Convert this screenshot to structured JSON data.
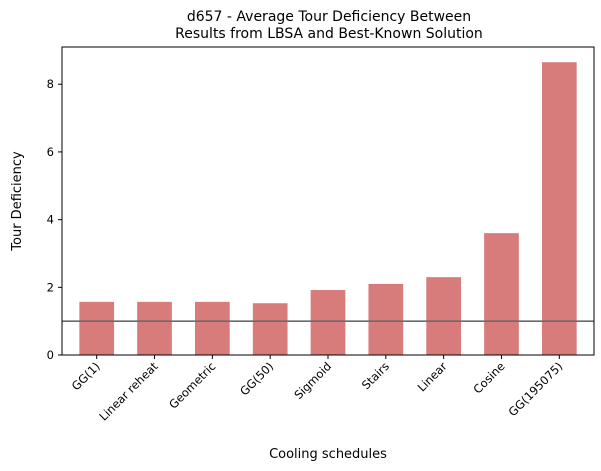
{
  "chart_data": {
    "type": "bar",
    "title_lines": [
      "d657 - Average Tour Deficiency Between",
      "Results from LBSA and Best-Known Solution"
    ],
    "xlabel": "Cooling schedules",
    "ylabel": "Tour Deficiency",
    "categories": [
      "GG(1)",
      "Linear reheat",
      "Geometric",
      "GG(50)",
      "Sigmoid",
      "Stairs",
      "Linear",
      "Cosine",
      "GG(195075)"
    ],
    "values": [
      1.57,
      1.57,
      1.57,
      1.53,
      1.92,
      2.1,
      2.3,
      3.6,
      8.65
    ],
    "ylim": [
      0,
      9.1
    ],
    "yticks": [
      0,
      2,
      4,
      6,
      8
    ],
    "reference_line": 1.0,
    "bar_color": "#d77b7b",
    "reference_line_color": "#6b6b6b",
    "grid": false
  }
}
